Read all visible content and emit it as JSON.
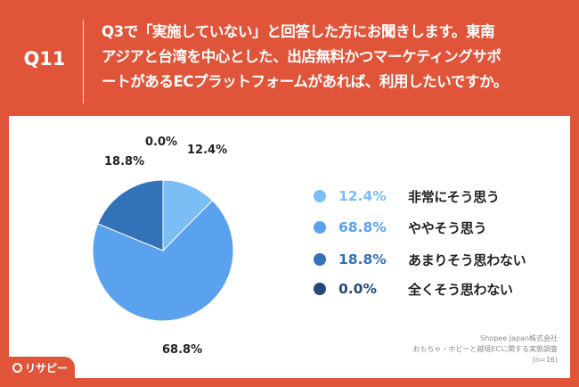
{
  "header": {
    "question_number": "Q11",
    "question_lines": [
      "Q3で「実施していない」と回答した方にお聞きします。東南",
      "アジアと台湾を中心とした、出店無料かつマーケティングサポ",
      "ートがあるECプラットフォームがあれば、利用したいですか。"
    ]
  },
  "colors": {
    "frame": "#e0553a",
    "series": [
      "#7bbdf5",
      "#5aa2ee",
      "#3272b8",
      "#25497a"
    ]
  },
  "chart_data": {
    "type": "pie",
    "slices": [
      {
        "label": "非常にそう思う",
        "value": 12.4,
        "value_label": "12.4%"
      },
      {
        "label": "ややそう思う",
        "value": 68.8,
        "value_label": "68.8%"
      },
      {
        "label": "あまりそう思わない",
        "value": 18.8,
        "value_label": "18.8%"
      },
      {
        "label": "全くそう思わない",
        "value": 0.0,
        "value_label": "0.0%"
      }
    ],
    "start": "12 o'clock",
    "direction": "clockwise",
    "legend_position": "right"
  },
  "source": {
    "company": "Shopee Japan株式会社",
    "survey": "おもちゃ・ホビーと越境ECに関する実態調査",
    "n": "(n=16)"
  },
  "brand": {
    "name": "リサピー",
    "icon": "risapi-logo-icon"
  }
}
